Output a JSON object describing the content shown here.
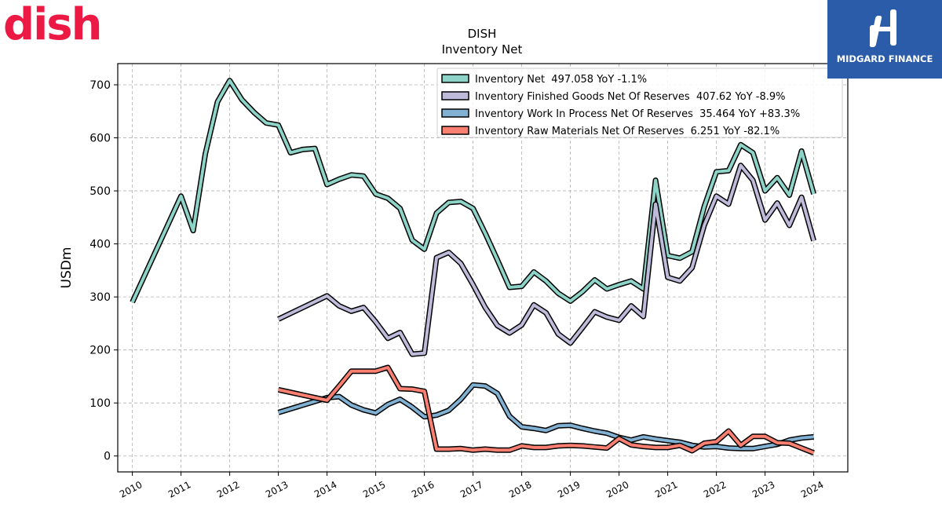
{
  "colors": {
    "inventory_net": "#8dd3c7",
    "finished_goods": "#bebada",
    "work_in_process": "#80b1d3",
    "raw_materials": "#fb8072",
    "dish_brand": "#ec1944",
    "midgard_brand": "#2a5caa"
  },
  "logos": {
    "dish": "dish",
    "midgard": "MIDGARD FINANCE"
  },
  "chart_data": {
    "type": "line",
    "title": "DISH",
    "subtitle": "Inventory Net",
    "xlabel": "",
    "ylabel": "USDm",
    "xlim": [
      2009.7,
      2024.7
    ],
    "ylim": [
      -30,
      740
    ],
    "xticks": [
      "2010",
      "2011",
      "2012",
      "2013",
      "2014",
      "2015",
      "2016",
      "2017",
      "2018",
      "2019",
      "2020",
      "2021",
      "2022",
      "2023",
      "2024"
    ],
    "yticks": [
      "0",
      "100",
      "200",
      "300",
      "400",
      "500",
      "600",
      "700"
    ],
    "grid": true,
    "legend_position": "top-right",
    "series": [
      {
        "key": "inventory_net",
        "name": "Inventory Net  497.058 YoY -1.1%",
        "points": [
          [
            2010.0,
            290
          ],
          [
            2011.0,
            490
          ],
          [
            2011.25,
            425
          ],
          [
            2011.5,
            570
          ],
          [
            2011.75,
            668
          ],
          [
            2012.0,
            708
          ],
          [
            2012.25,
            672
          ],
          [
            2012.5,
            648
          ],
          [
            2012.75,
            628
          ],
          [
            2013.0,
            624
          ],
          [
            2013.25,
            572
          ],
          [
            2013.5,
            578
          ],
          [
            2013.75,
            580
          ],
          [
            2014.0,
            512
          ],
          [
            2014.25,
            522
          ],
          [
            2014.5,
            530
          ],
          [
            2014.75,
            528
          ],
          [
            2015.0,
            494
          ],
          [
            2015.25,
            486
          ],
          [
            2015.5,
            467
          ],
          [
            2015.75,
            407
          ],
          [
            2016.0,
            390
          ],
          [
            2016.25,
            458
          ],
          [
            2016.5,
            478
          ],
          [
            2016.75,
            480
          ],
          [
            2017.0,
            467
          ],
          [
            2017.25,
            420
          ],
          [
            2017.5,
            370
          ],
          [
            2017.75,
            318
          ],
          [
            2018.0,
            320
          ],
          [
            2018.25,
            347
          ],
          [
            2018.5,
            330
          ],
          [
            2018.75,
            307
          ],
          [
            2019.0,
            292
          ],
          [
            2019.25,
            310
          ],
          [
            2019.5,
            332
          ],
          [
            2019.75,
            315
          ],
          [
            2020.0,
            323
          ],
          [
            2020.25,
            330
          ],
          [
            2020.5,
            315
          ],
          [
            2020.75,
            520
          ],
          [
            2021.0,
            378
          ],
          [
            2021.25,
            373
          ],
          [
            2021.5,
            385
          ],
          [
            2021.75,
            470
          ],
          [
            2022.0,
            536
          ],
          [
            2022.25,
            538
          ],
          [
            2022.5,
            587
          ],
          [
            2022.75,
            572
          ],
          [
            2023.0,
            500
          ],
          [
            2023.25,
            525
          ],
          [
            2023.5,
            492
          ],
          [
            2023.75,
            575
          ],
          [
            2024.0,
            494
          ]
        ]
      },
      {
        "key": "finished_goods",
        "name": "Inventory Finished Goods Net Of Reserves  407.62 YoY -8.9%",
        "points": [
          [
            2013.0,
            258
          ],
          [
            2014.0,
            302
          ],
          [
            2014.25,
            283
          ],
          [
            2014.5,
            273
          ],
          [
            2014.75,
            280
          ],
          [
            2015.0,
            253
          ],
          [
            2015.25,
            222
          ],
          [
            2015.5,
            233
          ],
          [
            2015.75,
            192
          ],
          [
            2016.0,
            194
          ],
          [
            2016.25,
            374
          ],
          [
            2016.5,
            384
          ],
          [
            2016.75,
            363
          ],
          [
            2017.0,
            323
          ],
          [
            2017.25,
            280
          ],
          [
            2017.5,
            246
          ],
          [
            2017.75,
            232
          ],
          [
            2018.0,
            247
          ],
          [
            2018.25,
            285
          ],
          [
            2018.5,
            270
          ],
          [
            2018.75,
            230
          ],
          [
            2019.0,
            213
          ],
          [
            2019.25,
            242
          ],
          [
            2019.5,
            272
          ],
          [
            2019.75,
            262
          ],
          [
            2020.0,
            256
          ],
          [
            2020.25,
            283
          ],
          [
            2020.5,
            263
          ],
          [
            2020.75,
            475
          ],
          [
            2021.0,
            337
          ],
          [
            2021.25,
            330
          ],
          [
            2021.5,
            355
          ],
          [
            2021.75,
            435
          ],
          [
            2022.0,
            490
          ],
          [
            2022.25,
            475
          ],
          [
            2022.5,
            548
          ],
          [
            2022.75,
            520
          ],
          [
            2023.0,
            445
          ],
          [
            2023.25,
            477
          ],
          [
            2023.5,
            435
          ],
          [
            2023.75,
            488
          ],
          [
            2024.0,
            406
          ]
        ]
      },
      {
        "key": "work_in_process",
        "name": "Inventory Work In Process Net Of Reserves  35.464 YoY +83.3%",
        "points": [
          [
            2013.0,
            82
          ],
          [
            2014.0,
            110
          ],
          [
            2014.25,
            112
          ],
          [
            2014.5,
            96
          ],
          [
            2014.75,
            87
          ],
          [
            2015.0,
            81
          ],
          [
            2015.25,
            97
          ],
          [
            2015.5,
            107
          ],
          [
            2015.75,
            92
          ],
          [
            2016.0,
            74
          ],
          [
            2016.25,
            77
          ],
          [
            2016.5,
            86
          ],
          [
            2016.75,
            107
          ],
          [
            2017.0,
            134
          ],
          [
            2017.25,
            132
          ],
          [
            2017.5,
            118
          ],
          [
            2017.75,
            75
          ],
          [
            2018.0,
            55
          ],
          [
            2018.25,
            52
          ],
          [
            2018.5,
            48
          ],
          [
            2018.75,
            57
          ],
          [
            2019.0,
            58
          ],
          [
            2019.25,
            52
          ],
          [
            2019.5,
            47
          ],
          [
            2019.75,
            43
          ],
          [
            2020.0,
            35
          ],
          [
            2020.25,
            30
          ],
          [
            2020.5,
            36
          ],
          [
            2020.75,
            32
          ],
          [
            2021.0,
            29
          ],
          [
            2021.25,
            26
          ],
          [
            2021.5,
            20
          ],
          [
            2021.75,
            17
          ],
          [
            2022.0,
            18
          ],
          [
            2022.25,
            15
          ],
          [
            2022.5,
            14
          ],
          [
            2022.75,
            14
          ],
          [
            2023.0,
            18
          ],
          [
            2023.25,
            22
          ],
          [
            2023.5,
            30
          ],
          [
            2023.75,
            34
          ],
          [
            2024.0,
            36
          ]
        ]
      },
      {
        "key": "raw_materials",
        "name": "Inventory Raw Materials Net Of Reserves  6.251 YoY -82.1%",
        "points": [
          [
            2013.0,
            125
          ],
          [
            2014.0,
            105
          ],
          [
            2014.25,
            132
          ],
          [
            2014.5,
            160
          ],
          [
            2014.75,
            160
          ],
          [
            2015.0,
            160
          ],
          [
            2015.25,
            167
          ],
          [
            2015.5,
            127
          ],
          [
            2015.75,
            126
          ],
          [
            2016.0,
            122
          ],
          [
            2016.25,
            13
          ],
          [
            2016.5,
            13
          ],
          [
            2016.75,
            14
          ],
          [
            2017.0,
            11
          ],
          [
            2017.25,
            13
          ],
          [
            2017.5,
            11
          ],
          [
            2017.75,
            11
          ],
          [
            2018.0,
            19
          ],
          [
            2018.25,
            16
          ],
          [
            2018.5,
            16
          ],
          [
            2018.75,
            19
          ],
          [
            2019.0,
            20
          ],
          [
            2019.25,
            19
          ],
          [
            2019.5,
            17
          ],
          [
            2019.75,
            15
          ],
          [
            2020.0,
            33
          ],
          [
            2020.25,
            21
          ],
          [
            2020.5,
            18
          ],
          [
            2020.75,
            16
          ],
          [
            2021.0,
            16
          ],
          [
            2021.25,
            20
          ],
          [
            2021.5,
            10
          ],
          [
            2021.75,
            24
          ],
          [
            2022.0,
            27
          ],
          [
            2022.25,
            47
          ],
          [
            2022.5,
            20
          ],
          [
            2022.75,
            37
          ],
          [
            2023.0,
            37
          ],
          [
            2023.25,
            25
          ],
          [
            2023.5,
            24
          ],
          [
            2023.75,
            15
          ],
          [
            2024.0,
            6
          ]
        ]
      }
    ]
  }
}
